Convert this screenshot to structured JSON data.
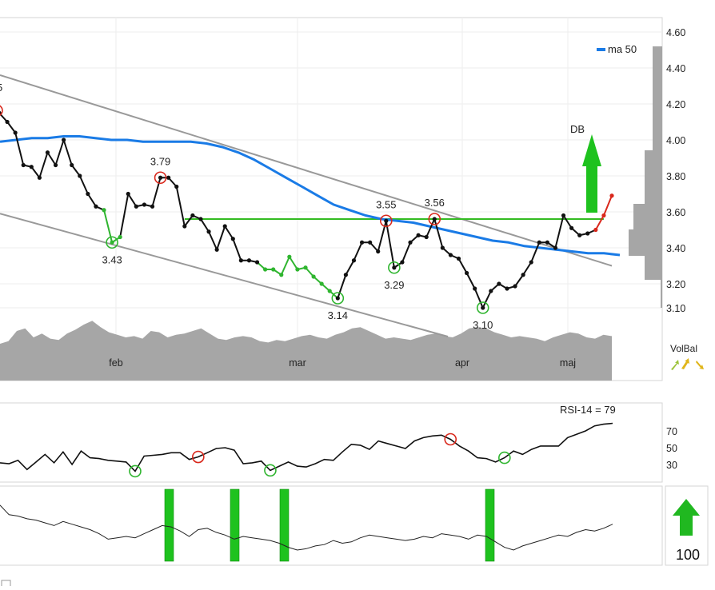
{
  "colors": {
    "price": "#111111",
    "ma": "#1a7be6",
    "trend": "#999999",
    "resistance": "#33bb22",
    "green": "#2fb52f",
    "red": "#d9281c",
    "volume": "#a6a6a6",
    "signal": "#1ec21e",
    "frame": "#d6d6d6",
    "grid": "#eeeeee"
  },
  "chart_data": [
    {
      "type": "line",
      "title": "",
      "legend": {
        "label": "ma  50",
        "placement": "top-right"
      },
      "y_axis": {
        "ticks": [
          "4.60",
          "4.40",
          "4.20",
          "4.00",
          "3.80",
          "3.60",
          "3.40",
          "3.20",
          "3.10"
        ],
        "ylim": [
          3.08,
          4.64
        ]
      },
      "x_axis": {
        "ticks": [
          "feb",
          "mar",
          "apr",
          "maj"
        ]
      },
      "series": [
        {
          "kind": "price",
          "values": [
            4.15,
            4.1,
            4.04,
            3.86,
            3.85,
            3.79,
            3.93,
            3.86,
            4.0,
            3.86,
            3.8,
            3.7,
            3.63,
            3.61,
            3.43,
            3.46,
            3.7,
            3.63,
            3.64,
            3.63,
            3.79,
            3.79,
            3.74,
            3.52,
            3.58,
            3.56,
            3.49,
            3.39,
            3.52,
            3.45,
            3.33,
            3.33,
            3.32,
            3.28,
            3.28,
            3.25,
            3.35,
            3.28,
            3.29,
            3.24,
            3.2,
            3.17,
            3.14,
            3.25,
            3.33,
            3.43,
            3.43,
            3.38,
            3.55,
            3.29,
            3.32,
            3.43,
            3.47,
            3.46,
            3.56,
            3.4,
            3.36,
            3.34,
            3.26,
            3.18,
            3.1,
            3.17,
            3.2,
            3.18,
            3.19,
            3.25,
            3.32,
            3.43,
            3.43,
            3.4,
            3.58,
            3.51,
            3.47,
            3.48,
            3.5,
            3.58,
            3.69
          ]
        },
        {
          "kind": "ma",
          "name": "ma  50",
          "values": [
            3.99,
            4.0,
            4.01,
            4.01,
            4.02,
            4.02,
            4.01,
            4.0,
            4.0,
            3.99,
            3.99,
            3.99,
            3.99,
            3.98,
            3.96,
            3.93,
            3.89,
            3.84,
            3.79,
            3.74,
            3.69,
            3.64,
            3.61,
            3.58,
            3.56,
            3.55,
            3.54,
            3.52,
            3.5,
            3.48,
            3.46,
            3.44,
            3.43,
            3.41,
            3.4,
            3.39,
            3.38,
            3.37,
            3.37,
            3.36
          ]
        }
      ],
      "price_labels": [
        {
          "label": "3.79",
          "value": 3.79,
          "marker": "red"
        },
        {
          "label": "3.43",
          "value": 3.43,
          "marker": "green"
        },
        {
          "label": "3.55",
          "value": 3.55,
          "marker": "red"
        },
        {
          "label": "3.56",
          "value": 3.56,
          "marker": "red"
        },
        {
          "label": "3.29",
          "value": 3.29,
          "marker": "green"
        },
        {
          "label": "3.14",
          "value": 3.14,
          "marker": "green"
        },
        {
          "label": "3.10",
          "value": 3.1,
          "marker": "green"
        }
      ],
      "cut_label": "5",
      "resistance_level": 3.56,
      "signal": {
        "label": "DB",
        "direction": "up"
      }
    },
    {
      "type": "line",
      "title": "RSI-14 = 79",
      "y_axis": {
        "ticks": [
          "70",
          "50",
          "30"
        ]
      },
      "values": [
        32,
        31,
        35,
        24,
        33,
        42,
        32,
        45,
        30,
        46,
        38,
        37,
        35,
        34,
        33,
        22,
        40,
        41,
        42,
        44,
        44,
        36,
        39,
        44,
        49,
        50,
        47,
        31,
        32,
        34,
        23,
        28,
        33,
        28,
        27,
        31,
        36,
        35,
        45,
        54,
        53,
        48,
        58,
        55,
        52,
        49,
        58,
        62,
        64,
        65,
        60,
        52,
        46,
        38,
        37,
        33,
        38,
        46,
        42,
        48,
        52,
        52,
        52,
        62,
        66,
        70,
        76,
        78,
        79
      ]
    },
    {
      "type": "line",
      "kind": "oscillator",
      "values": [
        14,
        28,
        30,
        34,
        36,
        40,
        44,
        38,
        42,
        46,
        50,
        56,
        64,
        62,
        60,
        62,
        56,
        50,
        44,
        46,
        52,
        60,
        50,
        48,
        54,
        58,
        64,
        60,
        62,
        64,
        66,
        70,
        76,
        80,
        78,
        74,
        72,
        66,
        70,
        68,
        62,
        58,
        60,
        62,
        64,
        66,
        64,
        60,
        62,
        56,
        58,
        60,
        64,
        58,
        60,
        68,
        76,
        80,
        74,
        70,
        66,
        62,
        58,
        60,
        54,
        50,
        52,
        48,
        42
      ]
    }
  ],
  "volbal": {
    "label": "VolBal"
  },
  "score": {
    "value": "100"
  }
}
